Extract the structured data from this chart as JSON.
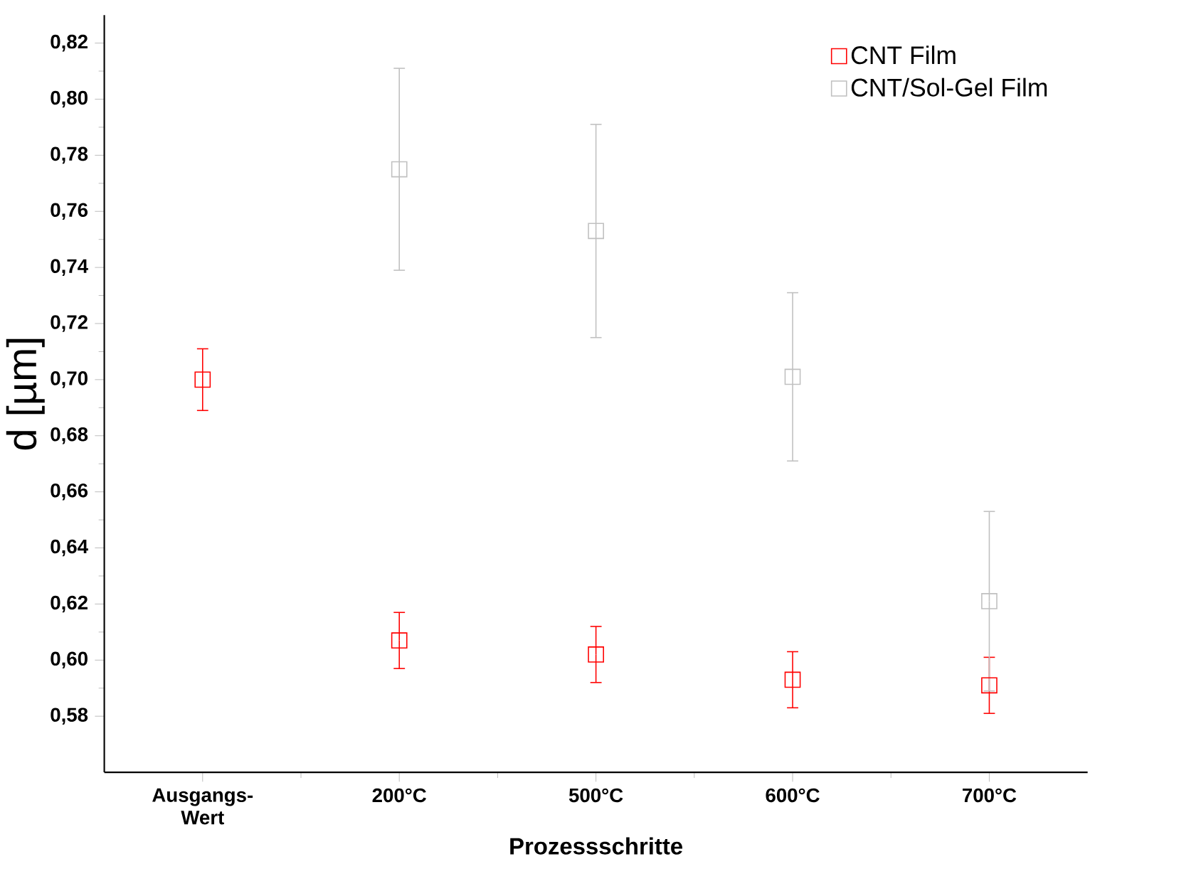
{
  "chart_data": {
    "type": "scatter",
    "xlabel": "Prozessschritte",
    "ylabel": "d [µm]",
    "categories": [
      "Ausgangs-Wert",
      "200°C",
      "500°C",
      "600°C",
      "700°C"
    ],
    "series": [
      {
        "name": "CNT Film",
        "color": "#ff0000",
        "values": [
          0.7,
          0.607,
          0.602,
          0.593,
          0.591
        ],
        "errors": [
          0.011,
          0.01,
          0.01,
          0.01,
          0.01
        ]
      },
      {
        "name": "CNT/Sol-Gel Film",
        "color": "#c0c0c0",
        "values": [
          null,
          0.775,
          0.753,
          0.701,
          0.621
        ],
        "errors": [
          null,
          0.036,
          0.038,
          0.03,
          0.032
        ]
      }
    ],
    "ylim": [
      0.56,
      0.83
    ],
    "yticks": [
      {
        "value": 0.58,
        "label": "0,58"
      },
      {
        "value": 0.6,
        "label": "0,60"
      },
      {
        "value": 0.62,
        "label": "0,62"
      },
      {
        "value": 0.64,
        "label": "0,64"
      },
      {
        "value": 0.66,
        "label": "0,66"
      },
      {
        "value": 0.68,
        "label": "0,68"
      },
      {
        "value": 0.7,
        "label": "0,70"
      },
      {
        "value": 0.72,
        "label": "0,72"
      },
      {
        "value": 0.74,
        "label": "0,74"
      },
      {
        "value": 0.76,
        "label": "0,76"
      },
      {
        "value": 0.78,
        "label": "0,78"
      },
      {
        "value": 0.8,
        "label": "0,80"
      },
      {
        "value": 0.82,
        "label": "0,82"
      }
    ],
    "marker": "square",
    "legend": "top right",
    "grid": false
  }
}
